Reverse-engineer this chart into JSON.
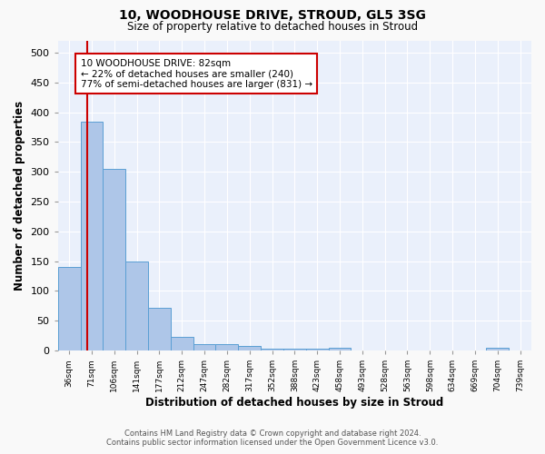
{
  "title1": "10, WOODHOUSE DRIVE, STROUD, GL5 3SG",
  "title2": "Size of property relative to detached houses in Stroud",
  "xlabel": "Distribution of detached houses by size in Stroud",
  "ylabel": "Number of detached properties",
  "bar_labels": [
    "36sqm",
    "71sqm",
    "106sqm",
    "141sqm",
    "177sqm",
    "212sqm",
    "247sqm",
    "282sqm",
    "317sqm",
    "352sqm",
    "388sqm",
    "423sqm",
    "458sqm",
    "493sqm",
    "528sqm",
    "563sqm",
    "598sqm",
    "634sqm",
    "669sqm",
    "704sqm",
    "739sqm"
  ],
  "bar_heights": [
    140,
    385,
    305,
    150,
    72,
    23,
    10,
    10,
    8,
    3,
    3,
    3,
    5,
    0,
    0,
    0,
    0,
    0,
    0,
    4,
    0
  ],
  "bar_color": "#aec6e8",
  "bar_edge_color": "#5a9fd4",
  "vline_color": "#cc0000",
  "annotation_text": "10 WOODHOUSE DRIVE: 82sqm\n← 22% of detached houses are smaller (240)\n77% of semi-detached houses are larger (831) →",
  "annotation_box_color": "#ffffff",
  "annotation_box_edge": "#cc0000",
  "ylim": [
    0,
    520
  ],
  "yticks": [
    0,
    50,
    100,
    150,
    200,
    250,
    300,
    350,
    400,
    450,
    500
  ],
  "background_color": "#eaf0fb",
  "grid_color": "#ffffff",
  "fig_facecolor": "#f9f9f9",
  "footer_line1": "Contains HM Land Registry data © Crown copyright and database right 2024.",
  "footer_line2": "Contains public sector information licensed under the Open Government Licence v3.0."
}
